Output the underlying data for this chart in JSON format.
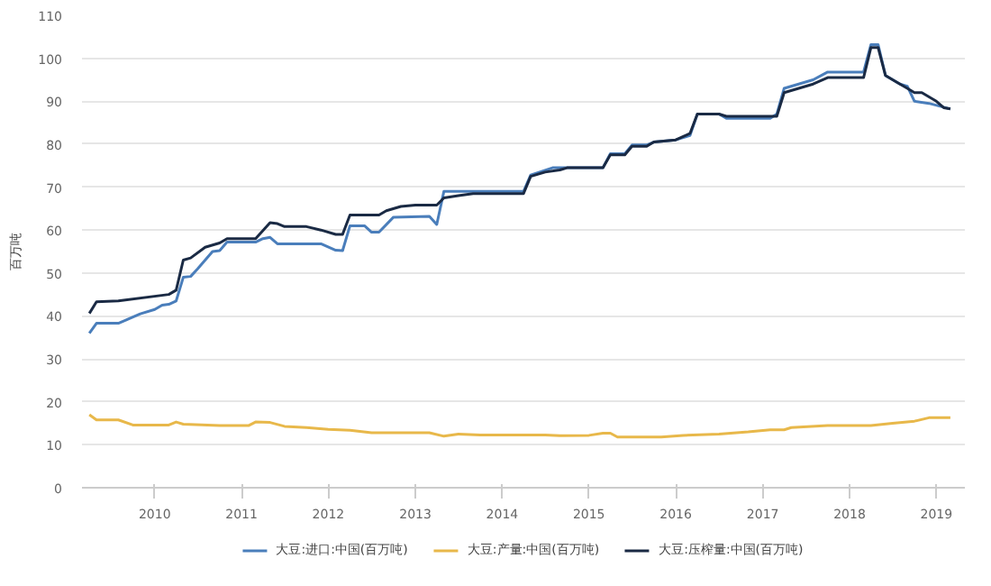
{
  "chart_data": {
    "type": "line",
    "ylabel": "百万吨",
    "xlim": [
      "2009-03-01",
      "2019-05-01"
    ],
    "xticks": [
      "2010",
      "2011",
      "2012",
      "2013",
      "2014",
      "2015",
      "2016",
      "2017",
      "2018",
      "2019"
    ],
    "ylim": [
      0,
      110
    ],
    "yticks": [
      0,
      10,
      20,
      30,
      40,
      50,
      60,
      70,
      80,
      90,
      100,
      110
    ],
    "grid": "y",
    "legend": "bottom",
    "marker": "none",
    "line_style": "solid",
    "series": [
      {
        "name": "大豆:进口:中国(百万吨)",
        "color": "#4a7ebb",
        "x": [
          "2009-04",
          "2009-05",
          "2009-08",
          "2009-09",
          "2009-11",
          "2010-01",
          "2010-02",
          "2010-03",
          "2010-04",
          "2010-05",
          "2010-06",
          "2010-07",
          "2010-09",
          "2010-10",
          "2010-11",
          "2011-03",
          "2011-04",
          "2011-05",
          "2011-06",
          "2011-12",
          "2012-02",
          "2012-03",
          "2012-04",
          "2012-06",
          "2012-07",
          "2012-08",
          "2012-10",
          "2013-03",
          "2013-04",
          "2013-05",
          "2014-04",
          "2014-05",
          "2014-08",
          "2015-03",
          "2015-04",
          "2015-06",
          "2015-07",
          "2015-09",
          "2015-10",
          "2016-01",
          "2016-03",
          "2016-04",
          "2016-07",
          "2016-08",
          "2017-02",
          "2017-03",
          "2017-04",
          "2017-06",
          "2017-08",
          "2017-10",
          "2018-03",
          "2018-04",
          "2018-05",
          "2018-06",
          "2018-08",
          "2018-09",
          "2018-10",
          "2018-12",
          "2019-03"
        ],
        "values": [
          36,
          38.3,
          38.3,
          39,
          40.5,
          41.5,
          42.5,
          42.7,
          43.5,
          49,
          49.2,
          51,
          55,
          55.2,
          57.2,
          57.2,
          58,
          58.3,
          56.8,
          56.8,
          55.3,
          55.2,
          61,
          61,
          59.5,
          59.5,
          63,
          63.2,
          61.3,
          69,
          69,
          72.8,
          74.5,
          74.5,
          77.8,
          77.8,
          79.8,
          79.8,
          80.5,
          81,
          82,
          87,
          87,
          86,
          86,
          87,
          93,
          94,
          95,
          96.8,
          96.8,
          103.2,
          103.2,
          96,
          94,
          93.5,
          90,
          89.5,
          88.2
        ]
      },
      {
        "name": "大豆:产量:中国(百万吨)",
        "color": "#e8b84a",
        "x": [
          "2009-04",
          "2009-05",
          "2009-08",
          "2009-10",
          "2010-03",
          "2010-04",
          "2010-05",
          "2010-10",
          "2011-02",
          "2011-03",
          "2011-05",
          "2011-07",
          "2011-10",
          "2012-01",
          "2012-04",
          "2012-07",
          "2013-03",
          "2013-05",
          "2013-07",
          "2013-10",
          "2014-07",
          "2014-09",
          "2015-01",
          "2015-03",
          "2015-04",
          "2015-05",
          "2015-11",
          "2016-02",
          "2016-07",
          "2016-11",
          "2017-02",
          "2017-04",
          "2017-05",
          "2017-10",
          "2018-04",
          "2018-07",
          "2018-10",
          "2018-12",
          "2019-03"
        ],
        "values": [
          17,
          15.8,
          15.8,
          14.6,
          14.6,
          15.3,
          14.8,
          14.5,
          14.5,
          15.3,
          15.2,
          14.3,
          14,
          13.6,
          13.4,
          12.8,
          12.8,
          12,
          12.5,
          12.3,
          12.3,
          12.1,
          12.2,
          12.7,
          12.7,
          11.8,
          11.8,
          12.2,
          12.5,
          13,
          13.5,
          13.5,
          14,
          14.5,
          14.5,
          15,
          15.5,
          16.3,
          16.3
        ]
      },
      {
        "name": "大豆:压榨量:中国(百万吨)",
        "color": "#1a2a44",
        "x": [
          "2009-04",
          "2009-05",
          "2009-08",
          "2010-03",
          "2010-04",
          "2010-05",
          "2010-06",
          "2010-08",
          "2010-10",
          "2010-11",
          "2011-03",
          "2011-05",
          "2011-06",
          "2011-07",
          "2011-10",
          "2011-12",
          "2012-02",
          "2012-03",
          "2012-04",
          "2012-08",
          "2012-09",
          "2012-11",
          "2013-01",
          "2013-04",
          "2013-05",
          "2013-07",
          "2013-09",
          "2014-04",
          "2014-05",
          "2014-07",
          "2014-09",
          "2014-10",
          "2015-03",
          "2015-04",
          "2015-06",
          "2015-07",
          "2015-09",
          "2015-10",
          "2016-01",
          "2016-03",
          "2016-04",
          "2016-07",
          "2016-08",
          "2017-03",
          "2017-04",
          "2017-06",
          "2017-08",
          "2017-10",
          "2018-03",
          "2018-04",
          "2018-05",
          "2018-06",
          "2018-08",
          "2018-09",
          "2018-10",
          "2018-11",
          "2019-01",
          "2019-02",
          "2019-03"
        ],
        "values": [
          40.6,
          43.3,
          43.5,
          45,
          46,
          53,
          53.5,
          56,
          57,
          58,
          58,
          61.7,
          61.5,
          60.8,
          60.8,
          60,
          59,
          59,
          63.5,
          63.5,
          64.5,
          65.5,
          65.8,
          65.8,
          67.5,
          68,
          68.5,
          68.5,
          72.5,
          73.5,
          74,
          74.5,
          74.5,
          77.5,
          77.5,
          79.5,
          79.5,
          80.5,
          81,
          82.5,
          87,
          87,
          86.5,
          86.5,
          92,
          93,
          94,
          95.5,
          95.5,
          102.5,
          102.5,
          96,
          94,
          93,
          92,
          92,
          90,
          88.5,
          88.2
        ]
      }
    ]
  }
}
